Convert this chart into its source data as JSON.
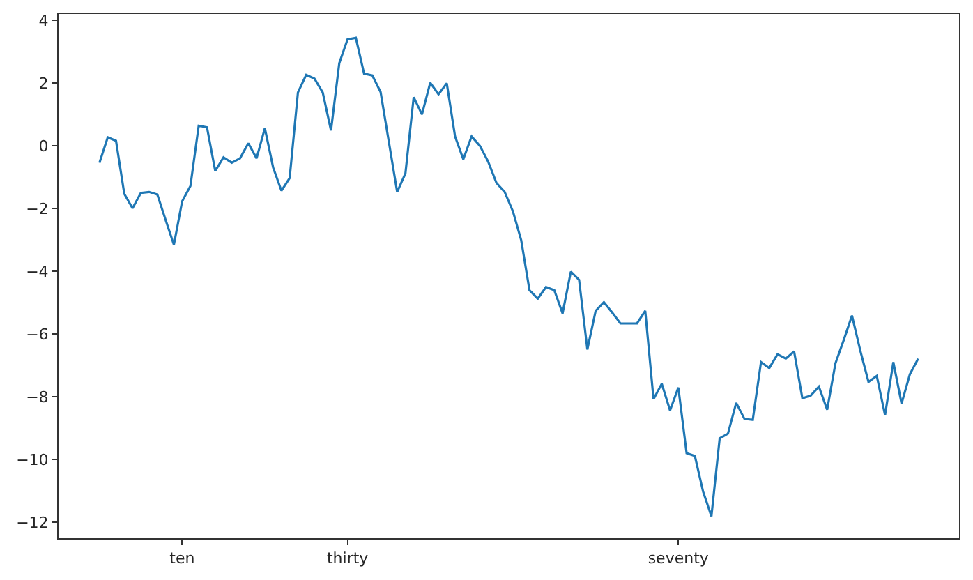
{
  "chart_data": {
    "type": "line",
    "categories": [
      null,
      null,
      null,
      null,
      null,
      null,
      null,
      null,
      null,
      null,
      "ten",
      null,
      null,
      null,
      null,
      null,
      null,
      null,
      null,
      null,
      null,
      null,
      null,
      null,
      null,
      null,
      null,
      null,
      null,
      null,
      "thirty",
      null,
      null,
      null,
      null,
      null,
      null,
      null,
      null,
      null,
      null,
      null,
      null,
      null,
      null,
      null,
      null,
      null,
      null,
      null,
      null,
      null,
      null,
      null,
      null,
      null,
      null,
      null,
      null,
      null,
      null,
      null,
      null,
      null,
      null,
      null,
      null,
      null,
      null,
      null,
      "seventy",
      null,
      null,
      null,
      null,
      null,
      null,
      null,
      null,
      null,
      null,
      null,
      null,
      null,
      null,
      null,
      null,
      null,
      null,
      null,
      null,
      null,
      null,
      null,
      null,
      null,
      null,
      null,
      null,
      null
    ],
    "series": [
      {
        "color": "#1f77b4",
        "values": [
          -0.54,
          0.27,
          0.16,
          -1.53,
          -1.99,
          -1.5,
          -1.47,
          -1.55,
          -2.36,
          -3.15,
          -1.77,
          -1.28,
          0.64,
          0.59,
          -0.8,
          -0.37,
          -0.54,
          -0.4,
          0.08,
          -0.4,
          0.56,
          -0.69,
          -1.43,
          -1.03,
          1.7,
          2.26,
          2.14,
          1.7,
          0.49,
          2.63,
          3.39,
          3.44,
          2.3,
          2.24,
          1.71,
          0.12,
          -1.47,
          -0.88,
          1.55,
          1.0,
          2.01,
          1.64,
          1.99,
          0.3,
          -0.43,
          0.3,
          0.0,
          -0.5,
          -1.18,
          -1.47,
          -2.09,
          -3.01,
          -4.6,
          -4.87,
          -4.5,
          -4.6,
          -5.34,
          -4.01,
          -4.27,
          -6.49,
          -5.26,
          -4.98,
          -5.31,
          -5.66,
          -5.66,
          -5.66,
          -5.26,
          -8.07,
          -7.58,
          -8.43,
          -7.7,
          -9.79,
          -9.88,
          -11.02,
          -11.8,
          -9.32,
          -9.17,
          -8.19,
          -8.7,
          -8.73,
          -6.89,
          -7.08,
          -6.64,
          -6.78,
          -6.55,
          -8.04,
          -7.96,
          -7.67,
          -8.41,
          -6.93,
          -6.19,
          -5.41,
          -6.52,
          -7.52,
          -7.33,
          -8.58,
          -6.89,
          -8.21,
          -7.28,
          -6.78
        ]
      }
    ],
    "ylim": [
      -12.5,
      4.2
    ],
    "yticks": [
      -12,
      -10,
      -8,
      -6,
      -4,
      -2,
      0,
      2,
      4
    ],
    "grid": false,
    "legend": false,
    "marker": "none",
    "line_style": "solid"
  }
}
